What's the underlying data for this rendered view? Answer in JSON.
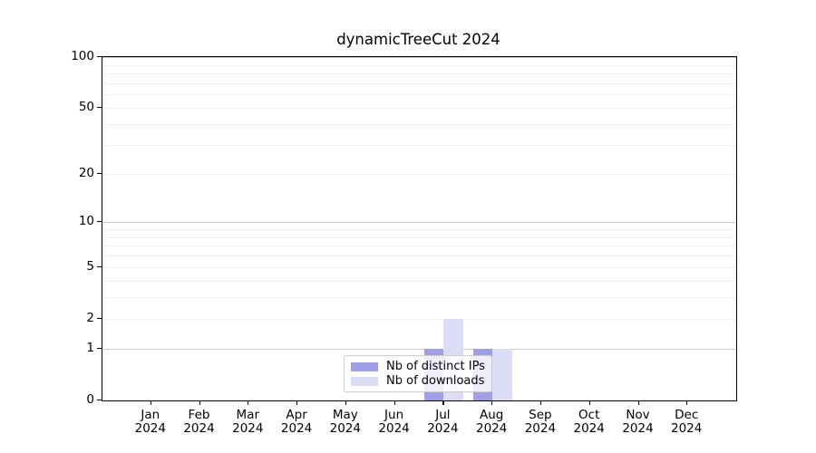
{
  "title": "dynamicTreeCut 2024",
  "colors": {
    "background": "#ffffff",
    "axis": "#000000",
    "grid_major": "#c9c9c9",
    "grid_minor": "#f0f0f0",
    "legend_border": "#cccccc",
    "series_distinct_ips": "#9f9fe8",
    "series_downloads": "#dcdcf6"
  },
  "chart_data": {
    "type": "bar",
    "title": "dynamicTreeCut 2024",
    "categories": [
      "Jan 2024",
      "Feb 2024",
      "Mar 2024",
      "Apr 2024",
      "May 2024",
      "Jun 2024",
      "Jul 2024",
      "Aug 2024",
      "Sep 2024",
      "Oct 2024",
      "Nov 2024",
      "Dec 2024"
    ],
    "series": [
      {
        "name": "Nb of distinct IPs",
        "color": "#9f9fe8",
        "values": [
          0,
          0,
          0,
          0,
          0,
          0,
          1,
          1,
          0,
          0,
          0,
          0
        ]
      },
      {
        "name": "Nb of downloads",
        "color": "#dcdcf6",
        "values": [
          0,
          0,
          0,
          0,
          0,
          0,
          2,
          1,
          0,
          0,
          0,
          0
        ]
      }
    ],
    "xlabel": "",
    "ylabel": "",
    "yscale": "log1p",
    "ylim": [
      0,
      100
    ],
    "yticks": [
      0,
      1,
      2,
      5,
      10,
      20,
      50,
      100
    ],
    "grid": "horizontal",
    "grid_major_values": [
      1,
      10,
      100
    ],
    "grid_minor_values": [
      2,
      3,
      4,
      5,
      6,
      7,
      8,
      9,
      20,
      30,
      40,
      50,
      60,
      70,
      80,
      90
    ],
    "legend_position": "lower-center-inside"
  }
}
